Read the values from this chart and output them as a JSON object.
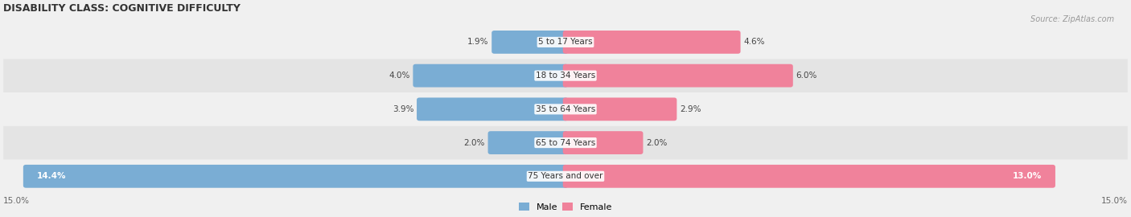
{
  "title": "DISABILITY CLASS: COGNITIVE DIFFICULTY",
  "source_text": "Source: ZipAtlas.com",
  "categories": [
    "5 to 17 Years",
    "18 to 34 Years",
    "35 to 64 Years",
    "65 to 74 Years",
    "75 Years and over"
  ],
  "male_values": [
    1.9,
    4.0,
    3.9,
    2.0,
    14.4
  ],
  "female_values": [
    4.6,
    6.0,
    2.9,
    2.0,
    13.0
  ],
  "max_val": 15.0,
  "male_color": "#7aadd4",
  "female_color": "#f0829b",
  "row_bg_colors": [
    "#f0f0f0",
    "#e4e4e4"
  ],
  "title_color": "#333333",
  "axis_label_color": "#666666",
  "legend_male": "Male",
  "legend_female": "Female",
  "axis_max_label": "15.0%",
  "axis_min_label": "15.0%",
  "inside_label_indices": [
    4
  ]
}
